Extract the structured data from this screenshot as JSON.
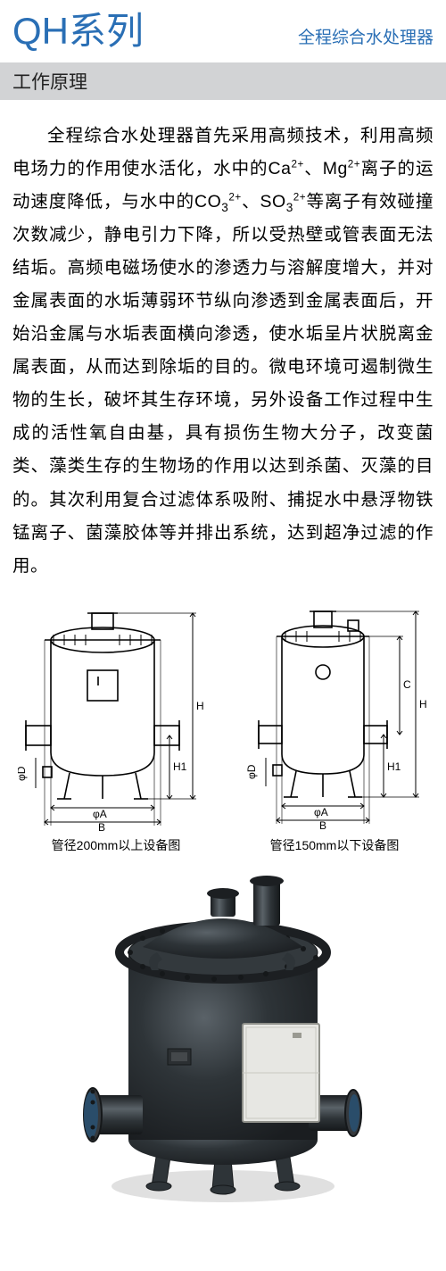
{
  "header": {
    "title": "QH系列",
    "subtitle": "全程综合水处理器",
    "title_color": "#2a6fb5",
    "subtitle_color": "#2a6fb5"
  },
  "section": {
    "heading": "工作原理",
    "heading_bg": "#d2d3d5",
    "heading_color": "#222222"
  },
  "body": {
    "text_color": "#000000",
    "paragraph_html": "全程综合水处理器首先采用高频技术，利用高频电场力的作用使水活化，水中的Ca<sup>2+</sup>、Mg<sup>2+</sup>离子的运动速度降低，与水中的CO<sub>3</sub><sup>2+</sup>、SO<sub>3</sub><sup>2+</sup>等离子有效碰撞次数减少，静电引力下降，所以受热壁或管表面无法结垢。高频电磁场使水的渗透力与溶解度增大，并对金属表面的水垢薄弱环节纵向渗透到金属表面后，开始沿金属与水垢表面横向渗透，使水垢呈片状脱离金属表面，从而达到除垢的目的。微电环境可遏制微生物的生长，破坏其生存环境，另外设备工作过程中生成的活性氧自由基，具有损伤生物大分子，改变菌类、藻类生存的生物场的作用以达到杀菌、灭藻的目的。其次利用复合过滤体系吸附、捕捉水中悬浮物铁锰离子、菌藻胶体等并排出系统，达到超净过滤的作用。"
  },
  "diagrams": {
    "stroke_color": "#000000",
    "fill_color": "#ffffff",
    "line_width": 1.6,
    "label_fontsize": 12,
    "left": {
      "caption": "管径200mm以上设备图",
      "labels": {
        "phiA": "φA",
        "B": "B",
        "H": "H",
        "H1": "H1",
        "phiD": "φD"
      }
    },
    "right": {
      "caption": "管径150mm以下设备图",
      "labels": {
        "phiA": "φA",
        "B": "B",
        "H": "H",
        "H1": "H1",
        "C": "C",
        "phiD": "φD"
      }
    }
  },
  "photo": {
    "body_color": "#2e3438",
    "body_dark": "#1a1d20",
    "body_highlight": "#5a6268",
    "flange_color": "#35393d",
    "panel_color": "#e7e7e3",
    "panel_border": "#8f908a",
    "flange_inner": "#2a4d6a"
  }
}
